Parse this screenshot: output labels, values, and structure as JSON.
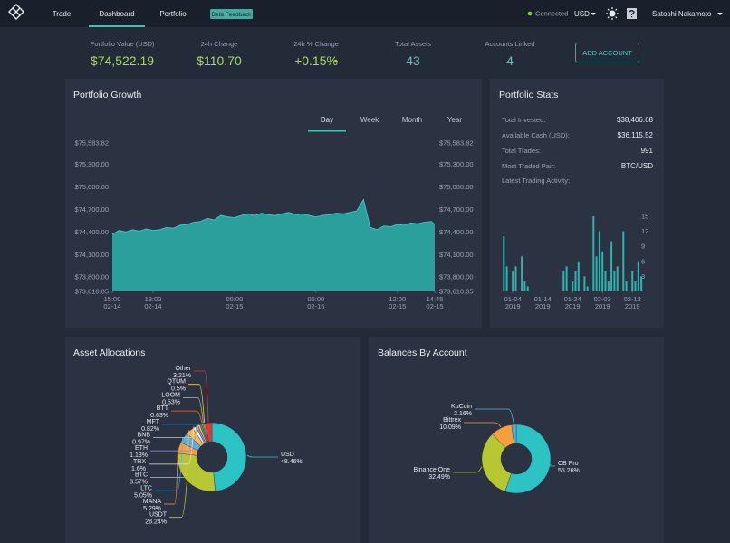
{
  "nav": {
    "items": [
      "Trade",
      "Dashboard",
      "Portfolio"
    ],
    "active": 1,
    "badge": "Beta Feedback",
    "status": "Connected",
    "currency": "USD",
    "user": "Satoshi Nakamoto"
  },
  "summary": {
    "items": [
      {
        "label": "Portfolio Value (USD)",
        "value": "$74,522.19",
        "color": "#a3dc5a"
      },
      {
        "label": "24h Change",
        "value": "$110.70",
        "color": "#a3dc5a"
      },
      {
        "label": "24h % Change",
        "value": "+0.15%",
        "color": "#a3dc5a"
      },
      {
        "label": "Total Assets",
        "value": "43",
        "color": "#5ec8c0"
      },
      {
        "label": "Accounts Linked",
        "value": "4",
        "color": "#5ec8c0"
      }
    ],
    "button": "ADD ACCOUNT"
  },
  "stats": {
    "title": "Portfolio Stats",
    "rows": [
      {
        "label": "Total Invested:",
        "value": "$38,406.68"
      },
      {
        "label": "Available Cash (USD):",
        "value": "$36,115.52"
      },
      {
        "label": "Total Trades:",
        "value": "991"
      },
      {
        "label": "Most Traded Pair:",
        "value": "BTC/USD"
      }
    ],
    "activity_label": "Latest Trading Activity:"
  },
  "chart_data": [
    {
      "type": "area",
      "title": "Portfolio Growth",
      "tabs": [
        "Day",
        "Week",
        "Month",
        "Year"
      ],
      "active_tab": 0,
      "color": "#2a9f9c",
      "x": [
        0,
        0.5,
        1,
        1.5,
        2,
        2.5,
        3,
        3.5,
        4,
        4.5,
        5,
        5.5,
        6,
        6.5,
        7,
        7.5,
        8,
        8.5,
        9,
        9.5,
        10,
        10.5,
        11,
        11.5,
        12,
        12.5,
        13,
        13.5,
        14,
        14.5,
        15,
        15.5,
        16,
        16.5,
        17,
        17.5,
        18,
        18.5,
        19,
        19.5,
        20,
        20.5,
        21,
        21.5,
        22,
        22.5,
        23,
        23.5,
        23.75
      ],
      "values": [
        74370,
        74420,
        74400,
        74430,
        74410,
        74440,
        74420,
        74430,
        74460,
        74450,
        74490,
        74500,
        74530,
        74540,
        74580,
        74560,
        74620,
        74600,
        74590,
        74620,
        74640,
        74620,
        74650,
        74630,
        74620,
        74640,
        74660,
        74630,
        74640,
        74620,
        74600,
        74620,
        74630,
        74650,
        74640,
        74660,
        74680,
        74830,
        74460,
        74430,
        74480,
        74470,
        74500,
        74490,
        74520,
        74510,
        74530,
        74540,
        74500
      ],
      "xlim": [
        0,
        23.75
      ],
      "xticks": [
        {
          "value": 0,
          "label": "15:00",
          "date": "02-14"
        },
        {
          "value": 3,
          "label": "18:00",
          "date": "02-14"
        },
        {
          "value": 9,
          "label": "00:00",
          "date": "02-15"
        },
        {
          "value": 15,
          "label": "06:00",
          "date": "02-15"
        },
        {
          "value": 21,
          "label": "12:00",
          "date": "02-15"
        },
        {
          "value": 23.75,
          "label": "14:45",
          "date": "02-15"
        }
      ],
      "ylim": [
        73610.05,
        75583.82
      ],
      "yticks": [
        {
          "value": 73610.05,
          "label": "$73,610.05"
        },
        {
          "value": 73800,
          "label": "$73,800.00"
        },
        {
          "value": 74100,
          "label": "$74,100.00"
        },
        {
          "value": 74400,
          "label": "$74,400.00"
        },
        {
          "value": 74700,
          "label": "$74,700.00"
        },
        {
          "value": 75000,
          "label": "$75,000.00"
        },
        {
          "value": 75300,
          "label": "$75,300.00"
        },
        {
          "value": 75583.82,
          "label": "$75,583.82"
        }
      ]
    },
    {
      "type": "bar",
      "color": "#2bb5b0",
      "x": [
        1,
        2,
        4,
        5,
        7,
        8,
        9,
        21,
        22,
        24,
        25,
        26,
        28,
        29,
        31,
        32,
        33,
        34,
        35,
        36,
        37,
        38,
        39,
        41,
        42,
        44,
        45,
        46,
        47
      ],
      "values": [
        11,
        5,
        4,
        5,
        7,
        2,
        1,
        4,
        5,
        2,
        4,
        6,
        3,
        1,
        15,
        7,
        12,
        8,
        4,
        2,
        10,
        4,
        5,
        12,
        2,
        4,
        2,
        6,
        3
      ],
      "xlim": [
        0,
        50
      ],
      "xticks": [
        {
          "value": 4,
          "label": "01-04",
          "year": "2019"
        },
        {
          "value": 14,
          "label": "01-14",
          "year": "2019"
        },
        {
          "value": 24,
          "label": "01-24",
          "year": "2019"
        },
        {
          "value": 34,
          "label": "02-03",
          "year": "2019"
        },
        {
          "value": 44,
          "label": "02-13",
          "year": "2019"
        }
      ],
      "ylim": [
        0,
        15
      ],
      "yticks": [
        3,
        6,
        9,
        12,
        15
      ]
    },
    {
      "type": "donut",
      "title": "Asset Allocations",
      "categories": [
        "USD",
        "USDT",
        "MANA",
        "LTC",
        "BTC",
        "TRX",
        "ETH",
        "BNB",
        "MFT",
        "BTT",
        "LOOM",
        "QTUM",
        "Other"
      ],
      "values": [
        48.46,
        28.24,
        5.29,
        5.05,
        3.57,
        1.6,
        1.13,
        0.97,
        0.82,
        0.63,
        0.53,
        0.5,
        3.21
      ],
      "value_labels": [
        "48.46%",
        "28.24%",
        "5.29%",
        "5.05%",
        "3.57%",
        "1.6%",
        "1.13%",
        "0.97%",
        "0.82%",
        "0.63%",
        "0.53%",
        "0.5%",
        "3.21%"
      ],
      "colors": [
        "#2cc3c5",
        "#b6c733",
        "#f5a03c",
        "#5aaee0",
        "#f0b85a",
        "#e6e6e6",
        "#8e8cd8",
        "#f4c542",
        "#3b8ed0",
        "#f06a3a",
        "#aad04a",
        "#f4d03f",
        "#e53935"
      ]
    },
    {
      "type": "donut",
      "title": "Balances By Account",
      "categories": [
        "CB Pro",
        "Binance One",
        "Bittrex",
        "KuCoin"
      ],
      "values": [
        55.26,
        32.49,
        10.09,
        2.16
      ],
      "value_labels": [
        "55.26%",
        "32.49%",
        "10.09%",
        "2.16%"
      ],
      "colors": [
        "#2cc3c5",
        "#b6c733",
        "#f5a03c",
        "#5aaee0"
      ]
    }
  ]
}
